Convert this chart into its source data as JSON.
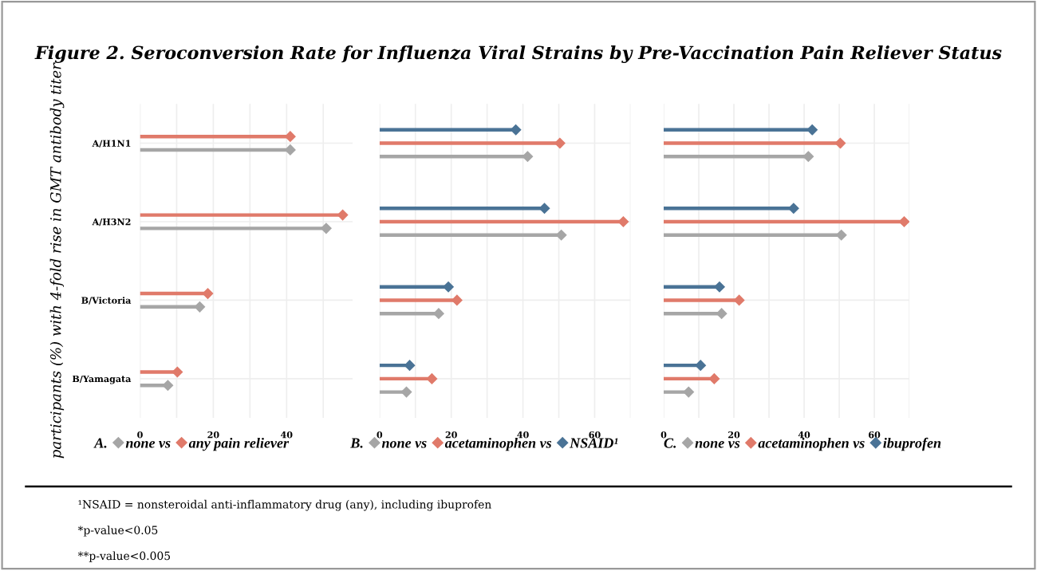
{
  "chart_data": [
    {
      "type": "lollipop",
      "orientation": "horizontal",
      "title": "Figure 2. Seroconversion Rate for Influenza Viral Strains by Pre-Vaccination Pain Reliever Status",
      "ylabel": "participants (%) with 4-fold rise in GMT antibody titer",
      "categories": [
        "A/H1N1",
        "A/H3N2",
        "B/Victoria",
        "B/Yamagata"
      ],
      "xlim": [
        0,
        58
      ],
      "xticks": [
        0,
        {
          "value": 10,
          "label": null
        },
        20,
        {
          "value": 30,
          "label": null
        },
        40,
        {
          "value": 50,
          "label": null
        }
      ],
      "grid": true,
      "marker": "diamond",
      "legend": "bottom",
      "legend_title": "A.",
      "series": [
        {
          "name": "none vs",
          "color": "#a6a6a6",
          "values": [
            41,
            50.8,
            16.3,
            7.6
          ]
        },
        {
          "name": "any pain reliever",
          "color": "#e07a6a",
          "values": [
            41,
            55.3,
            18.5,
            10.2
          ]
        }
      ],
      "annotations": [
        "¹NSAID = nonsteroidal anti-inflammatory drug (any), including ibuprofen",
        "*p-value<0.05",
        "**p-value<0.005"
      ]
    },
    {
      "type": "lollipop",
      "orientation": "horizontal",
      "tick_labels": "x",
      "xlim": [
        0,
        70
      ],
      "xticks": [
        0,
        {
          "value": 10,
          "label": null
        },
        20,
        {
          "value": 30,
          "label": null
        },
        40,
        {
          "value": 50,
          "label": null
        },
        60,
        {
          "value": 70,
          "label": null
        }
      ],
      "grid": true,
      "marker": "diamond",
      "legend": "bottom",
      "legend_title": "B.",
      "series": [
        {
          "name": "none vs",
          "color": "#a6a6a6",
          "values": [
            41.3,
            50.7,
            16.5,
            7.5
          ]
        },
        {
          "name": "acetaminophen vs",
          "color": "#e07a6a",
          "values": [
            50.3,
            68,
            21.6,
            14.6
          ]
        },
        {
          "name": "NSAID¹",
          "color": "#4a7396",
          "values": [
            38,
            46,
            19.2,
            8.4
          ]
        }
      ]
    },
    {
      "type": "lollipop",
      "orientation": "horizontal",
      "tick_labels": "x",
      "xlim": [
        0,
        70
      ],
      "xticks": [
        0,
        {
          "value": 10,
          "label": null
        },
        20,
        {
          "value": 30,
          "label": null
        },
        40,
        {
          "value": 50,
          "label": null
        },
        60,
        {
          "value": 70,
          "label": null
        }
      ],
      "grid": true,
      "marker": "diamond",
      "legend": "bottom",
      "legend_title": "C.",
      "series": [
        {
          "name": "none vs",
          "color": "#a6a6a6",
          "values": [
            41.2,
            50.6,
            16.5,
            7.1
          ]
        },
        {
          "name": "acetaminophen vs",
          "color": "#e07a6a",
          "values": [
            50.3,
            68.5,
            21.5,
            14.4
          ]
        },
        {
          "name": "ibuprofen",
          "color": "#4a7396",
          "values": [
            42.3,
            37,
            15.9,
            10.5
          ]
        }
      ]
    }
  ]
}
